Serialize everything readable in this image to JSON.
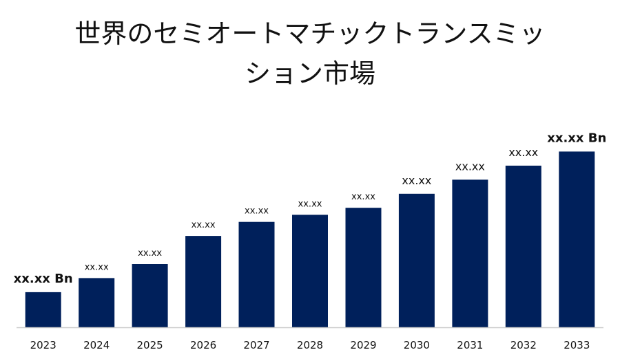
{
  "chart_data": {
    "type": "bar",
    "title_lines": [
      "世界のセミオートマチックトランスミッ",
      "ション市場"
    ],
    "categories": [
      "2023",
      "2024",
      "2025",
      "2026",
      "2027",
      "2028",
      "2029",
      "2030",
      "2031",
      "2032",
      "2033"
    ],
    "values": [
      1.0,
      1.4,
      1.8,
      2.6,
      3.0,
      3.2,
      3.4,
      3.8,
      4.2,
      4.6,
      5.0
    ],
    "data_labels": [
      "xx.xx Bn",
      "xx.xx",
      "xx.xx",
      "xx.xx",
      "xx.xx",
      "xx.xx",
      "xx.xx",
      "xx.xx",
      "xx.xx",
      "xx.xx",
      "xx.xx Bn"
    ],
    "label_emphasis": [
      "bold",
      "normal",
      "normal",
      "normal",
      "normal",
      "normal",
      "normal",
      "large",
      "large",
      "large",
      "bold"
    ],
    "ylim": [
      0,
      5.4
    ],
    "grid": false,
    "bar_color": "#00205b",
    "axis_color": "#cccccc",
    "text_color": "#111111"
  }
}
